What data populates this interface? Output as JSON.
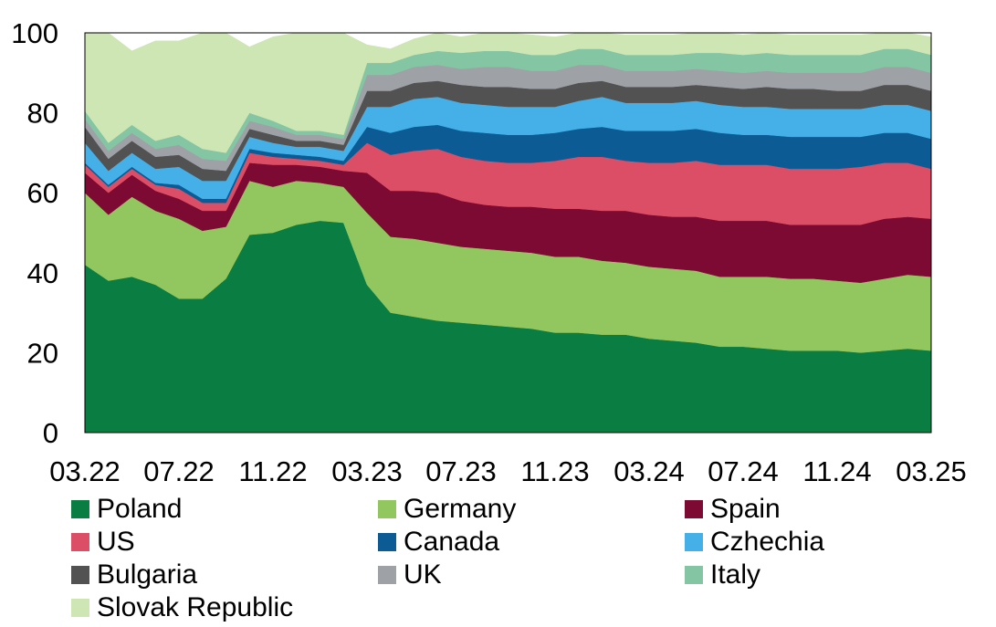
{
  "chart_data": {
    "type": "area",
    "stacked": true,
    "x": [
      "03.22",
      "04.22",
      "05.22",
      "06.22",
      "07.22",
      "08.22",
      "09.22",
      "10.22",
      "11.22",
      "12.22",
      "01.23",
      "02.23",
      "03.23",
      "04.23",
      "05.23",
      "06.23",
      "07.23",
      "08.23",
      "09.23",
      "10.23",
      "11.23",
      "12.23",
      "01.24",
      "02.24",
      "03.24",
      "04.24",
      "05.24",
      "06.24",
      "07.24",
      "08.24",
      "09.24",
      "10.24",
      "11.24",
      "12.24",
      "01.25",
      "02.25",
      "03.25"
    ],
    "x_tick_labels": [
      "03.22",
      "07.22",
      "11.22",
      "03.23",
      "07.23",
      "11.23",
      "03.24",
      "07.24",
      "11.24",
      "03.25"
    ],
    "ylim": [
      0,
      100
    ],
    "y_ticks": [
      0,
      20,
      40,
      60,
      80,
      100
    ],
    "gridlines": true,
    "legend_position": "bottom",
    "series": [
      {
        "name": "Poland",
        "color": "#0a7d43",
        "values": [
          42,
          38,
          39,
          37,
          33.5,
          33.5,
          38.5,
          49.5,
          50,
          52,
          53,
          52.5,
          37,
          30,
          29,
          28,
          27.5,
          27,
          26.5,
          26,
          25,
          25,
          24.5,
          24.5,
          23.5,
          23,
          22.5,
          21.5,
          21.5,
          21,
          20.5,
          20.5,
          20.5,
          20,
          20.5,
          21,
          20.5
        ]
      },
      {
        "name": "Germany",
        "color": "#92c65e",
        "values": [
          18,
          16.5,
          20,
          18.5,
          20,
          17,
          13,
          13.5,
          11.5,
          11,
          9.5,
          9,
          18,
          19,
          19.5,
          19.5,
          19,
          19,
          19,
          19,
          19,
          19,
          18.5,
          18,
          18,
          18,
          18,
          17.5,
          17.5,
          18,
          18,
          18,
          17.5,
          17.5,
          18,
          18.5,
          18.5
        ]
      },
      {
        "name": "Spain",
        "color": "#7d0a32",
        "values": [
          5,
          5.5,
          5.5,
          5,
          5,
          5,
          4,
          4.5,
          5.5,
          4,
          4,
          4,
          10,
          11.5,
          12,
          12.5,
          11.5,
          11,
          11,
          11.5,
          12,
          12,
          12.5,
          13,
          13,
          13,
          13.5,
          14,
          14,
          14,
          13.5,
          13.5,
          14,
          14.5,
          15,
          14.5,
          14.5
        ]
      },
      {
        "name": "US",
        "color": "#dc4d66",
        "values": [
          2,
          1.5,
          1.5,
          1.5,
          2.5,
          2,
          2,
          2.5,
          2,
          1.5,
          1.5,
          1.5,
          7.5,
          9,
          10,
          11,
          11,
          11,
          11,
          11,
          12,
          13,
          13.5,
          12.5,
          13,
          13.5,
          14,
          14,
          14,
          14,
          14,
          14,
          14,
          14.5,
          14,
          13.5,
          12.5
        ]
      },
      {
        "name": "Canada",
        "color": "#0d5b94",
        "values": [
          0.5,
          0.5,
          0.5,
          0.5,
          1,
          1,
          1,
          1,
          1,
          1,
          1,
          1,
          4,
          5.5,
          6,
          6,
          6.5,
          7,
          7,
          7,
          7,
          7,
          7.5,
          7.5,
          8,
          8,
          8,
          8,
          7.5,
          7.5,
          8,
          8,
          8,
          7.5,
          7.5,
          7.5,
          7.5
        ]
      },
      {
        "name": "Czhechia",
        "color": "#44b0e7",
        "values": [
          5,
          3.5,
          3.5,
          3.5,
          4.5,
          4.5,
          4.5,
          3,
          2.5,
          2,
          2.5,
          2.5,
          5,
          6.5,
          7,
          7,
          7,
          7,
          7,
          7,
          6.5,
          7,
          7.5,
          7,
          7,
          7,
          7,
          7,
          7,
          7,
          7,
          7,
          7,
          7,
          7,
          7,
          7
        ]
      },
      {
        "name": "Bulgaria",
        "color": "#525252",
        "values": [
          4,
          3,
          3,
          3,
          3,
          3,
          2.5,
          2,
          2,
          1.5,
          1.5,
          1.5,
          4,
          4,
          4,
          4,
          4.5,
          4.5,
          5,
          4.5,
          4.5,
          4.5,
          4,
          4,
          4,
          4,
          4,
          4.5,
          4.5,
          5,
          5,
          5,
          4.5,
          4.5,
          5,
          5,
          5
        ]
      },
      {
        "name": "UK",
        "color": "#9ea2a6",
        "values": [
          2,
          2,
          2,
          2,
          2.5,
          2.5,
          2.5,
          2,
          2,
          1.5,
          1.5,
          1.5,
          4,
          4,
          4,
          4,
          4,
          5,
          5,
          4.5,
          4.5,
          4.5,
          4,
          4,
          4,
          4,
          4,
          4,
          4,
          4,
          4,
          4,
          4.5,
          4.5,
          4.5,
          4.5,
          4.5
        ]
      },
      {
        "name": "Italy",
        "color": "#84c5a3",
        "values": [
          2,
          2,
          2,
          2,
          2.5,
          2.5,
          2,
          2,
          1.5,
          1,
          1,
          1,
          3,
          3,
          3,
          3.5,
          4,
          4,
          4,
          4,
          4,
          4,
          4,
          4,
          4,
          4,
          4,
          4.5,
          4.5,
          4.5,
          4.5,
          4.5,
          4.5,
          4.5,
          4.5,
          4.5,
          4.5
        ]
      },
      {
        "name": "Slovak Republic",
        "color": "#cde6b3",
        "values": [
          19.5,
          27.5,
          18.5,
          25,
          23.5,
          29,
          30.5,
          16.5,
          21,
          24.5,
          24.5,
          25.5,
          4.5,
          3.5,
          4,
          4.5,
          4,
          4.5,
          4.5,
          5,
          4.5,
          4.5,
          4,
          5,
          5,
          5,
          5,
          5,
          5,
          5,
          5,
          5,
          5,
          5,
          5,
          4.5,
          4.5
        ]
      }
    ]
  }
}
